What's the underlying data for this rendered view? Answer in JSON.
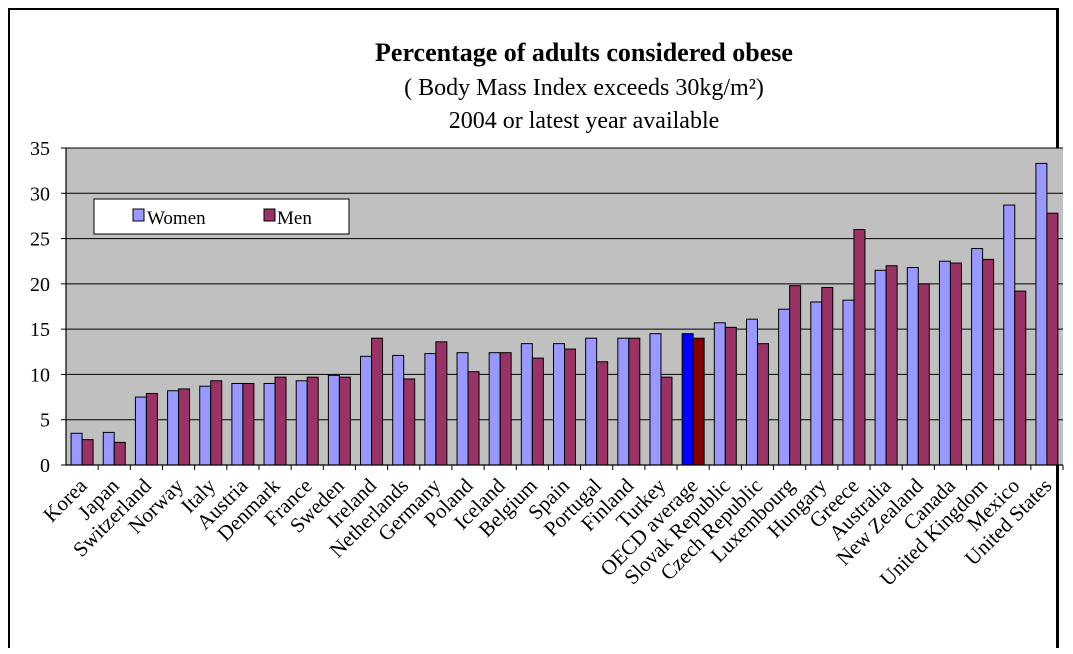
{
  "chart_data": {
    "type": "bar",
    "title": "Percentage of adults considered obese",
    "subtitle": "( Body Mass Index exceeds 30kg/m²)",
    "subtitle2": "2004 or latest year available",
    "xlabel": "",
    "ylabel": "",
    "ylim": [
      0,
      35
    ],
    "yticks": [
      0,
      5,
      10,
      15,
      20,
      25,
      30,
      35
    ],
    "grid": true,
    "legend_position": "top-left",
    "colors": {
      "plot_background": "#c0c0c0",
      "women": "#9999ff",
      "men": "#993366",
      "women_highlight": "#0000ff",
      "men_highlight": "#800000"
    },
    "highlight_category": "OECD average",
    "categories": [
      "Korea",
      "Japan",
      "Switzerland",
      "Norway",
      "Italy",
      "Austria",
      "Denmark",
      "France",
      "Sweden",
      "Ireland",
      "Netherlands",
      "Germany",
      "Poland",
      "Iceland",
      "Belgium",
      "Spain",
      "Portugal",
      "Finland",
      "Turkey",
      "OECD average",
      "Slovak Republic",
      "Czech Republic",
      "Luxembourg",
      "Hungary",
      "Greece",
      "Australia",
      "New Zealand",
      "Canada",
      "United Kingdom",
      "Mexico",
      "United States"
    ],
    "series": [
      {
        "name": "Women",
        "values": [
          3.5,
          3.6,
          7.5,
          8.2,
          8.7,
          9.0,
          9.0,
          9.3,
          9.9,
          12.0,
          12.1,
          12.3,
          12.4,
          12.4,
          13.4,
          13.4,
          14.0,
          14.0,
          14.5,
          14.5,
          15.7,
          16.1,
          17.2,
          18.0,
          18.2,
          21.5,
          21.8,
          22.5,
          23.9,
          28.7,
          33.3
        ]
      },
      {
        "name": "Men",
        "values": [
          2.8,
          2.5,
          7.9,
          8.4,
          9.3,
          9.0,
          9.7,
          9.7,
          9.7,
          14.0,
          9.5,
          13.6,
          10.3,
          12.4,
          11.8,
          12.8,
          11.4,
          14.0,
          9.7,
          14.0,
          15.2,
          13.4,
          19.8,
          19.6,
          26.0,
          22.0,
          20.0,
          22.3,
          22.7,
          19.2,
          27.8
        ]
      }
    ]
  }
}
